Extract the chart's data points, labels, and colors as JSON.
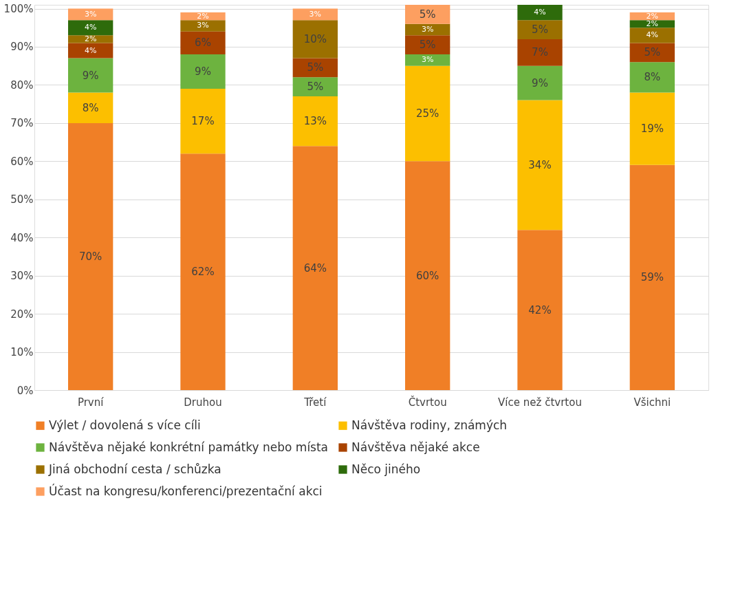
{
  "chart_data": {
    "type": "bar",
    "stacked": true,
    "categories": [
      "První",
      "Druhou",
      "Třetí",
      "Čtvrtou",
      "Více než čtvrtou",
      "Všichni"
    ],
    "series": [
      {
        "name": "Výlet / dovolená s více cíli",
        "color": "#f07f26",
        "values": [
          70,
          62,
          64,
          60,
          42,
          59
        ],
        "value_labels": [
          "70%",
          "62%",
          "64%",
          "60%",
          "42%",
          "59%"
        ]
      },
      {
        "name": "Návštěva rodiny, známých",
        "color": "#fcbf00",
        "values": [
          8,
          17,
          13,
          25,
          34,
          19
        ],
        "value_labels": [
          "8%",
          "17%",
          "13%",
          "25%",
          "34%",
          "19%"
        ]
      },
      {
        "name": "Návštěva nějaké konkrétní památky nebo místa",
        "color": "#6db33f",
        "values": [
          9,
          9,
          5,
          3,
          9,
          8
        ],
        "value_labels": [
          "9%",
          "9%",
          "5%",
          "3%",
          "9%",
          "8%"
        ]
      },
      {
        "name": "Návštěva nějaké akce",
        "color": "#a94300",
        "values": [
          4,
          6,
          5,
          5,
          7,
          5
        ],
        "value_labels": [
          "4%",
          "6%",
          "5%",
          "5%",
          "7%",
          "5%"
        ]
      },
      {
        "name": "Jiná obchodní cesta / schůzka",
        "color": "#9b7000",
        "values": [
          2,
          3,
          10,
          3,
          5,
          4
        ],
        "value_labels": [
          "2%",
          "3%",
          "10%",
          "3%",
          "5%",
          "4%"
        ]
      },
      {
        "name": "Něco jiného",
        "color": "#2e6b0b",
        "values": [
          4,
          0,
          0,
          0,
          4,
          2
        ],
        "value_labels": [
          "4%",
          null,
          null,
          null,
          "4%",
          "2%"
        ]
      },
      {
        "name": "Účast na kongresu/konferenci/prezentační akci",
        "color": "#fd9f60",
        "values": [
          3,
          2,
          3,
          5,
          0,
          2
        ],
        "value_labels": [
          "3%",
          "2%",
          "3%",
          "5%",
          null,
          "2%"
        ]
      }
    ],
    "ylim": [
      0,
      101
    ],
    "yticks": [
      {
        "value": 0,
        "label": "0%"
      },
      {
        "value": 10,
        "label": "10%"
      },
      {
        "value": 20,
        "label": "20%"
      },
      {
        "value": 30,
        "label": "30%"
      },
      {
        "value": 40,
        "label": "40%"
      },
      {
        "value": 50,
        "label": "50%"
      },
      {
        "value": 60,
        "label": "60%"
      },
      {
        "value": 70,
        "label": "70%"
      },
      {
        "value": 80,
        "label": "80%"
      },
      {
        "value": 90,
        "label": "90%"
      },
      {
        "value": 100,
        "label": "100%"
      }
    ],
    "grid": "y",
    "legend": "bottom"
  }
}
